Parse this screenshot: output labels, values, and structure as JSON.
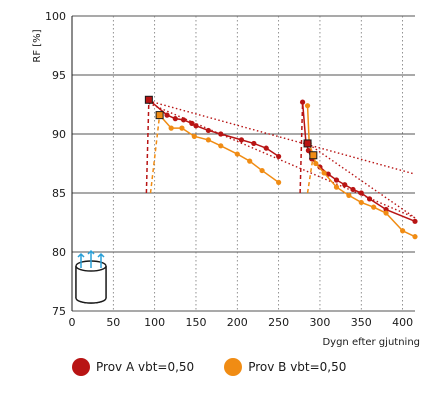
{
  "chart_data": {
    "type": "line",
    "xlabel": "Dygn efter gjutning",
    "ylabel": "RF [%]",
    "xlim": [
      0,
      415
    ],
    "ylim": [
      75,
      100
    ],
    "xticks": [
      0,
      50,
      100,
      150,
      200,
      250,
      300,
      350,
      400
    ],
    "yticks": [
      75,
      80,
      85,
      90,
      95,
      100
    ],
    "x_gridlines": "dotted",
    "y_gridlines": "solid",
    "series": [
      {
        "name": "Prov A vbt=0,50",
        "color": "#b81414",
        "segments": [
          {
            "x": [
              90,
              93
            ],
            "y": [
              85,
              92.9
            ],
            "style": "dashed"
          },
          {
            "x": [
              93,
              115,
              125,
              135,
              145,
              150,
              165,
              180,
              205,
              220,
              235,
              250
            ],
            "y": [
              92.9,
              91.6,
              91.3,
              91.2,
              90.9,
              90.7,
              90.3,
              90.0,
              89.5,
              89.2,
              88.8,
              88.1
            ],
            "style": "solid"
          },
          {
            "x": [
              276,
              279
            ],
            "y": [
              85,
              92.7
            ],
            "style": "dashed"
          },
          {
            "x": [
              279,
              283,
              286,
              290,
              300,
              310,
              320,
              330,
              340,
              350,
              360,
              380,
              415
            ],
            "y": [
              92.7,
              89.3,
              88.6,
              87.9,
              87.2,
              86.6,
              86.1,
              85.7,
              85.3,
              85.0,
              84.5,
              83.6,
              82.6
            ],
            "style": "solid"
          }
        ],
        "trend": [
          {
            "x": [
              93,
              415
            ],
            "y": [
              92.8,
              86.6
            ]
          },
          {
            "x": [
              93,
              415
            ],
            "y": [
              92.6,
              82.9
            ]
          },
          {
            "x": [
              283,
              415
            ],
            "y": [
              89.3,
              82.9
            ]
          }
        ]
      },
      {
        "name": "Prov B vbt=0,50",
        "color": "#f08c14",
        "segments": [
          {
            "x": [
              95,
              106
            ],
            "y": [
              85,
              91.6
            ],
            "style": "dashed"
          },
          {
            "x": [
              106,
              120,
              133,
              148,
              165,
              180,
              200,
              215,
              230,
              250
            ],
            "y": [
              91.6,
              90.5,
              90.5,
              89.8,
              89.5,
              89.0,
              88.3,
              87.7,
              86.9,
              85.9
            ],
            "style": "solid"
          },
          {
            "x": [
              285,
              292
            ],
            "y": [
              85,
              88.2
            ],
            "style": "dashed"
          },
          {
            "x": [
              285,
              287,
              292
            ],
            "y": [
              92.4,
              89.2,
              88.2
            ],
            "style": "solid"
          },
          {
            "x": [
              292,
              295,
              305,
              320,
              335,
              350,
              365,
              380,
              400,
              415
            ],
            "y": [
              88.2,
              87.5,
              86.7,
              85.5,
              84.8,
              84.2,
              83.8,
              83.3,
              81.8,
              81.3
            ],
            "style": "solid"
          }
        ],
        "trend": []
      }
    ],
    "square_markers": [
      {
        "x": 93,
        "y": 92.9,
        "fill": "#b81414"
      },
      {
        "x": 106,
        "y": 91.6,
        "fill": "#f08c14"
      },
      {
        "x": 285,
        "y": 89.2,
        "fill": "#b81414"
      },
      {
        "x": 292,
        "y": 88.2,
        "fill": "#f08c14"
      }
    ],
    "legend": [
      {
        "label": "Prov A vbt=0,50",
        "color": "#b81414"
      },
      {
        "label": "Prov B vbt=0,50",
        "color": "#f08c14"
      }
    ],
    "legend_position": "bottom",
    "inset_icon": "cylinder-sample-icon"
  }
}
